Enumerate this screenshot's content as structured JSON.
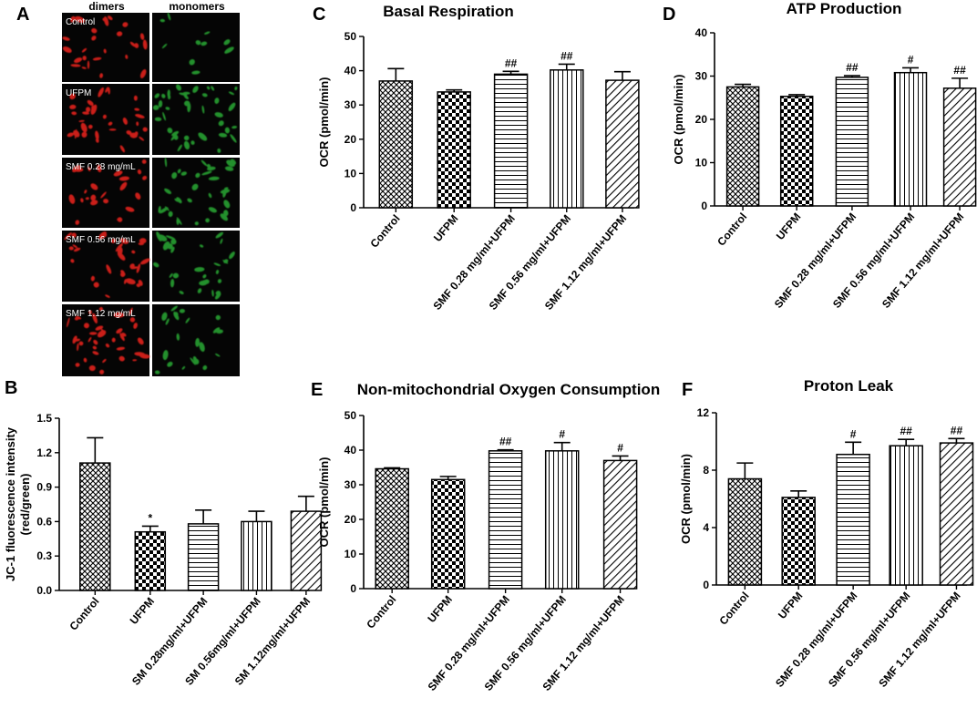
{
  "panel_a": {
    "letter": "A",
    "col_headers": [
      "dimers",
      "monomers"
    ],
    "row_labels": [
      "Control",
      "UFPM",
      "SMF 0.28 mg/mL",
      "SMF 0.56 mg/mL",
      "SMF 1.12 mg/mL"
    ]
  },
  "colors": {
    "dimer_signal": "#e0201a",
    "monomer_signal": "#2fbf3a",
    "micrograph_bg": "#050505"
  },
  "chart_data": [
    {
      "id": "B",
      "letter": "B",
      "type": "bar",
      "title": "",
      "ylabel": "JC-1 fluorescence intensity (red/green)",
      "ylabel_lines": [
        "JC-1 fluorescence intensity",
        "(red/green)"
      ],
      "categories": [
        "Control",
        "UFPM",
        "SM 0.28mg/ml+UFPM",
        "SM 0.56mg/ml+UFPM",
        "SM 1.12mg/ml+UFPM"
      ],
      "values": [
        1.11,
        0.51,
        0.58,
        0.6,
        0.69
      ],
      "errors": [
        0.22,
        0.05,
        0.12,
        0.09,
        0.13
      ],
      "annotations": [
        "",
        "*",
        "",
        "",
        ""
      ],
      "patterns": [
        "crosshatch",
        "checker",
        "horizontal",
        "vertical",
        "diagonal"
      ],
      "ylim": [
        0,
        1.5
      ],
      "yticks": [
        "0.0",
        "0.3",
        "0.6",
        "0.9",
        "1.2",
        "1.5"
      ]
    },
    {
      "id": "C",
      "letter": "C",
      "type": "bar",
      "title": "Basal Respiration",
      "ylabel": "OCR (pmol/min)",
      "ylabel_lines": [
        "OCR (pmol/min)"
      ],
      "categories": [
        "Control",
        "UFPM",
        "SMF 0.28 mg/ml+UFPM",
        "SMF 0.56 mg/ml+UFPM",
        "SMF 1.12 mg/ml+UFPM"
      ],
      "values": [
        37.0,
        33.8,
        39.0,
        40.2,
        37.2
      ],
      "errors": [
        3.6,
        0.6,
        0.8,
        1.7,
        2.5
      ],
      "annotations": [
        "",
        "",
        "##",
        "##",
        ""
      ],
      "patterns": [
        "crosshatch",
        "checker",
        "horizontal",
        "vertical",
        "diagonal"
      ],
      "ylim": [
        0,
        50
      ],
      "yticks": [
        "0",
        "10",
        "20",
        "30",
        "40",
        "50"
      ]
    },
    {
      "id": "D",
      "letter": "D",
      "type": "bar",
      "title": "ATP Production",
      "ylabel": "OCR (pmol/min)",
      "ylabel_lines": [
        "OCR (pmol/min)"
      ],
      "categories": [
        "Control",
        "UFPM",
        "SMF 0.28 mg/ml+UFPM",
        "SMF 0.56 mg/ml+UFPM",
        "SMF 1.12 mg/ml+UFPM"
      ],
      "values": [
        27.5,
        25.3,
        29.7,
        30.8,
        27.2
      ],
      "errors": [
        0.6,
        0.4,
        0.4,
        1.1,
        2.3
      ],
      "annotations": [
        "",
        "",
        "##",
        "#",
        "##"
      ],
      "patterns": [
        "crosshatch",
        "checker",
        "horizontal",
        "vertical",
        "diagonal"
      ],
      "ylim": [
        0,
        40
      ],
      "yticks": [
        "0",
        "10",
        "20",
        "30",
        "40"
      ]
    },
    {
      "id": "E",
      "letter": "E",
      "type": "bar",
      "title": "Non-mitochondrial Oxygen Consumption",
      "ylabel": "OCR (pmol/min)",
      "ylabel_lines": [
        "OCR (pmol/min)"
      ],
      "categories": [
        "Control",
        "UFPM",
        "SMF 0.28 mg/ml+UFPM",
        "SMF 0.56 mg/ml+UFPM",
        "SMF 1.12 mg/ml+UFPM"
      ],
      "values": [
        34.6,
        31.5,
        39.8,
        39.8,
        37.0
      ],
      "errors": [
        0.3,
        0.9,
        0.3,
        2.4,
        1.3
      ],
      "annotations": [
        "",
        "",
        "##",
        "#",
        "#"
      ],
      "patterns": [
        "crosshatch",
        "checker",
        "horizontal",
        "vertical",
        "diagonal"
      ],
      "ylim": [
        0,
        50
      ],
      "yticks": [
        "0",
        "10",
        "20",
        "30",
        "40",
        "50"
      ]
    },
    {
      "id": "F",
      "letter": "F",
      "type": "bar",
      "title": "Proton Leak",
      "ylabel": "OCR (pmol/min)",
      "ylabel_lines": [
        "OCR (pmol/min)"
      ],
      "categories": [
        "Control",
        "UFPM",
        "SMF 0.28 mg/ml+UFPM",
        "SMF 0.56 mg/ml+UFPM",
        "SMF 1.12 mg/ml+UFPM"
      ],
      "values": [
        7.4,
        6.1,
        9.1,
        9.7,
        9.9
      ],
      "errors": [
        1.1,
        0.45,
        0.85,
        0.45,
        0.3
      ],
      "annotations": [
        "",
        "",
        "#",
        "##",
        "##"
      ],
      "patterns": [
        "crosshatch",
        "checker",
        "horizontal",
        "vertical",
        "diagonal"
      ],
      "ylim": [
        0,
        12
      ],
      "yticks": [
        "0",
        "4",
        "8",
        "12"
      ]
    }
  ]
}
